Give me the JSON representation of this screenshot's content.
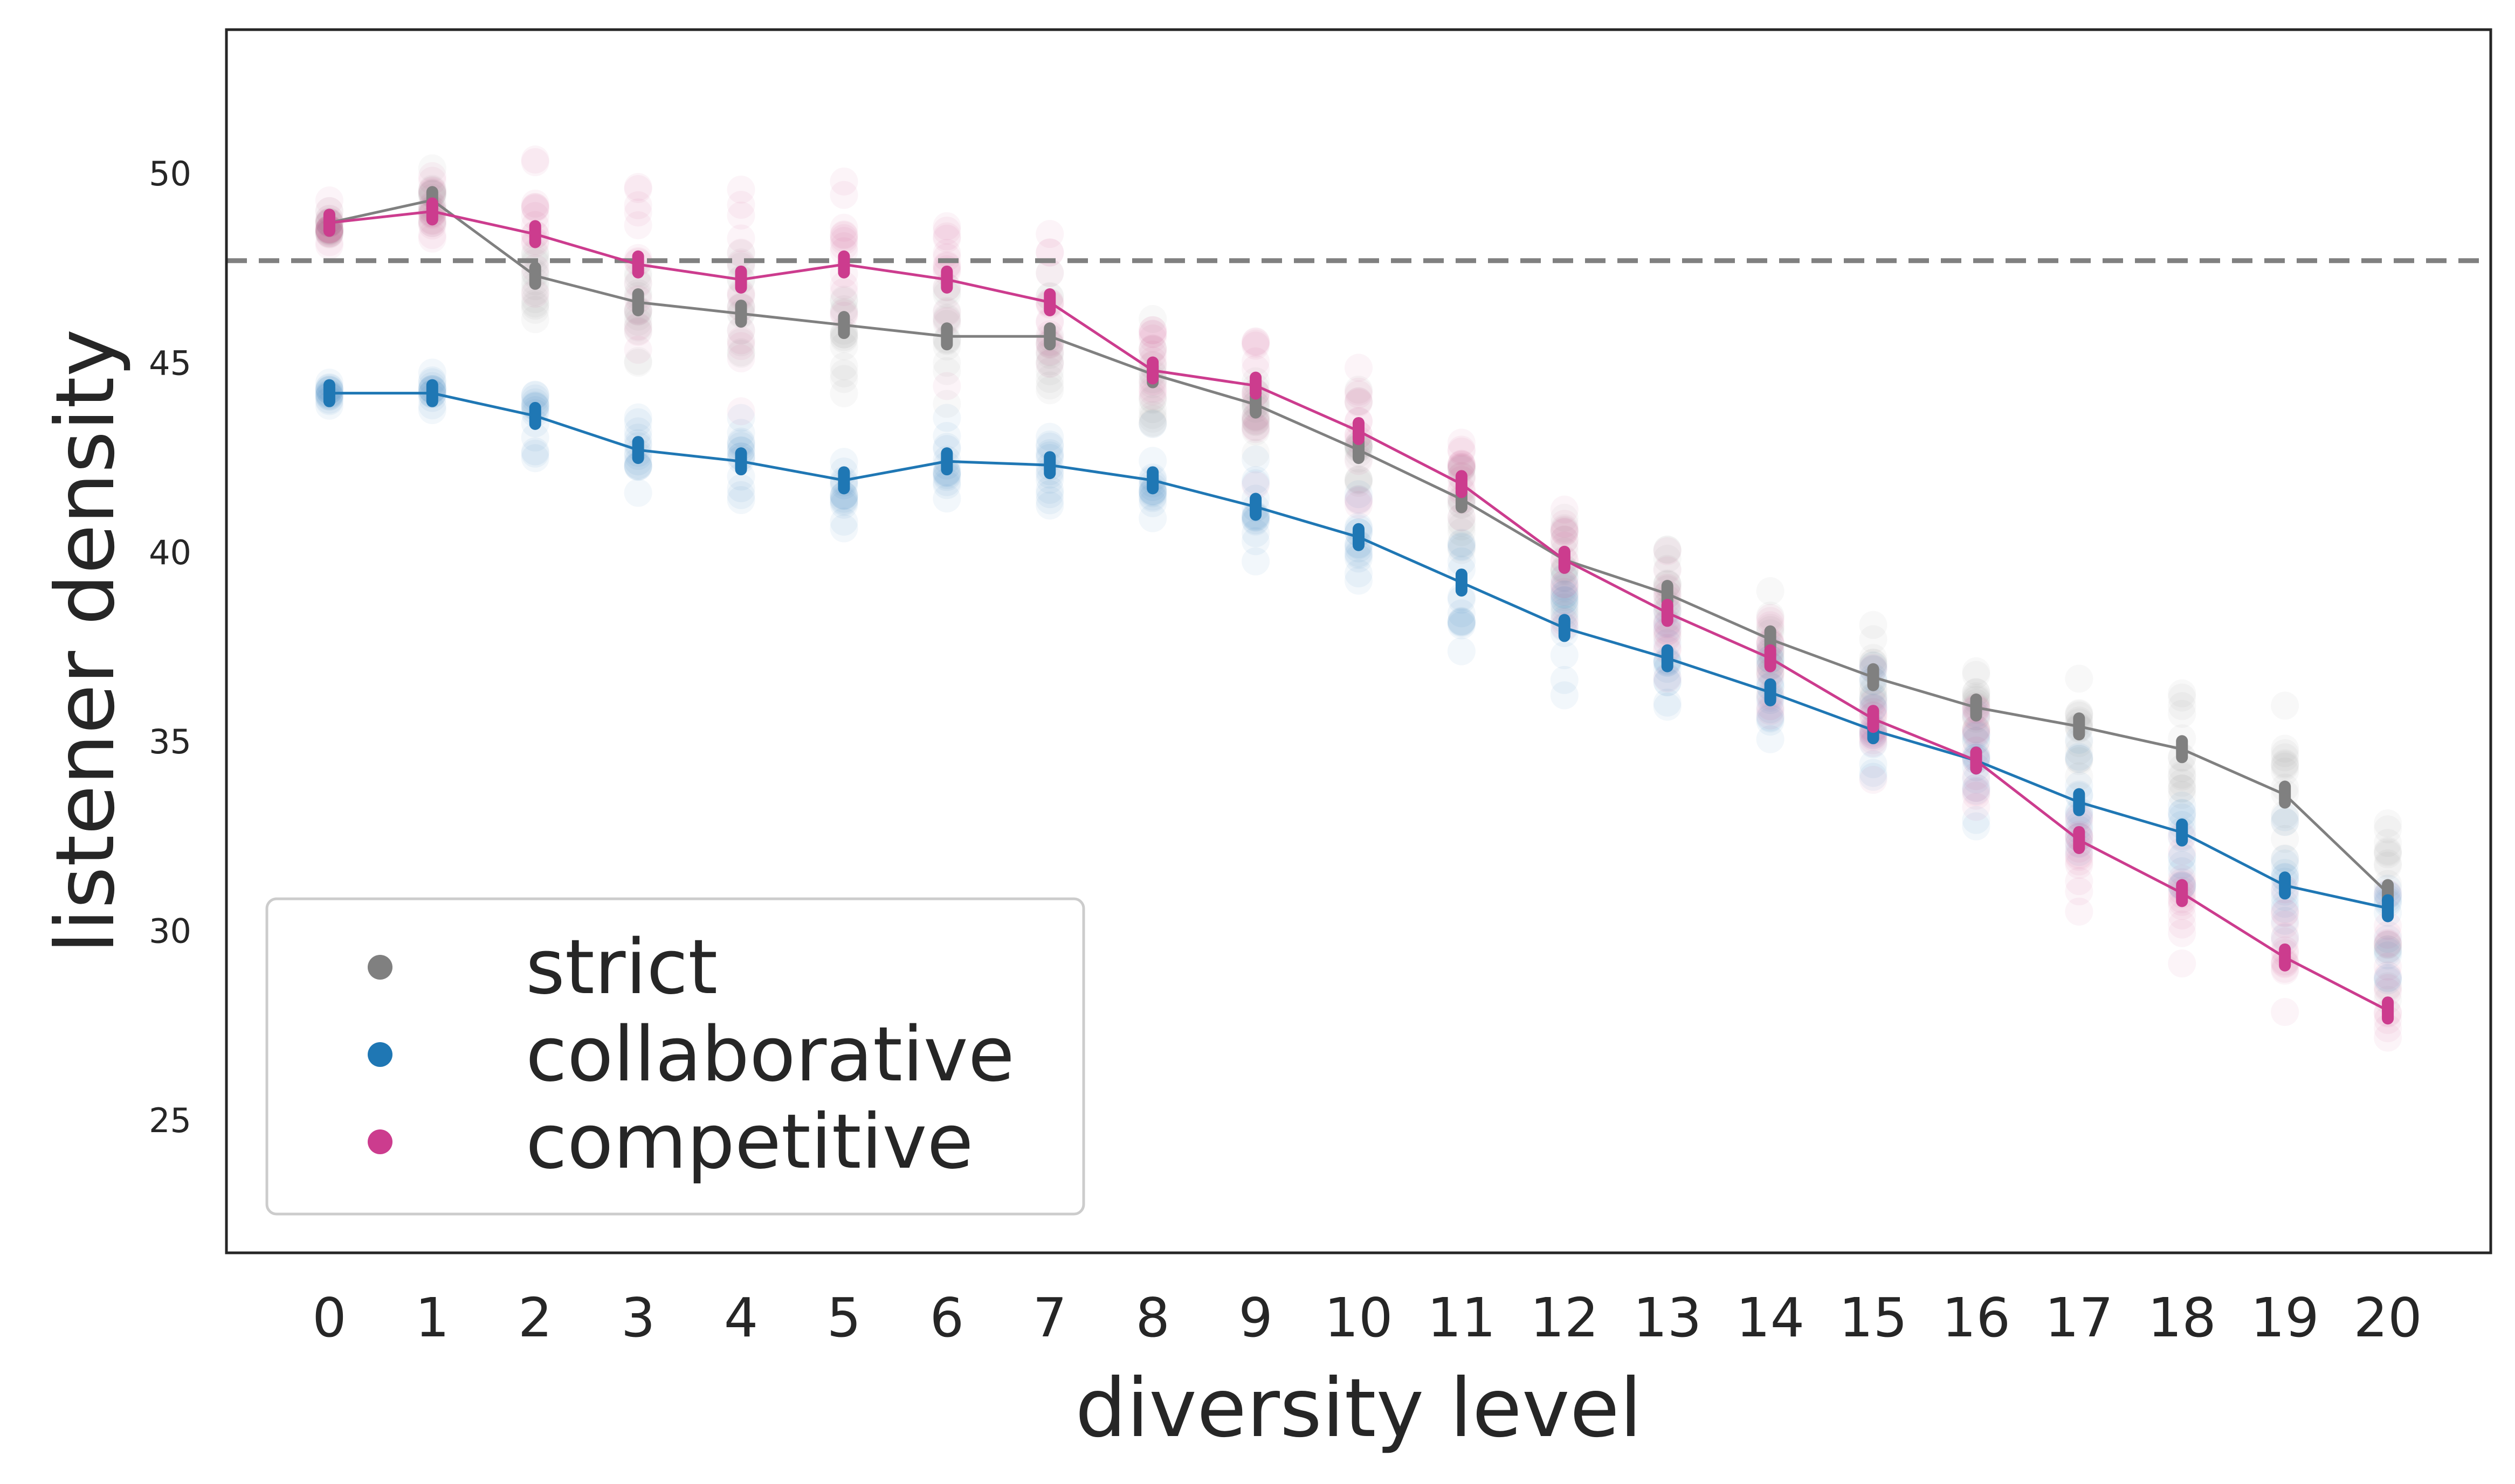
{
  "chart_data": {
    "type": "line",
    "xlabel": "diversity level",
    "ylabel": "listener density",
    "x": [
      0,
      1,
      2,
      3,
      4,
      5,
      6,
      7,
      8,
      9,
      10,
      11,
      12,
      13,
      14,
      15,
      16,
      17,
      18,
      19,
      20
    ],
    "x_tick_labels": [
      "0",
      "1",
      "2",
      "3",
      "4",
      "5",
      "6",
      "7",
      "8",
      "9",
      "10",
      "11",
      "12",
      "13",
      "14",
      "15",
      "16",
      "17",
      "18",
      "19",
      "20"
    ],
    "y_ticks": [
      25,
      30,
      35,
      40,
      45,
      50
    ],
    "y_tick_labels": [
      "25",
      "30",
      "35",
      "40",
      "45",
      "50"
    ],
    "xlim": [
      -1,
      21
    ],
    "ylim": [
      21.5,
      53.8
    ],
    "grid": false,
    "legend_position": "lower-left",
    "reference_line": {
      "y": 47.7,
      "style": "dashed",
      "color": "#808080"
    },
    "series": [
      {
        "name": "strict",
        "color": "#808080",
        "values": [
          48.7,
          49.3,
          47.3,
          46.6,
          46.3,
          46.0,
          45.7,
          45.7,
          44.7,
          43.9,
          42.7,
          41.4,
          39.8,
          38.9,
          37.7,
          36.7,
          35.9,
          35.4,
          34.8,
          33.6,
          31.0
        ],
        "spread": [
          1.0,
          1.0,
          2.0,
          2.0,
          2.5,
          2.5,
          2.5,
          2.5,
          2.0,
          2.5,
          2.0,
          2.0,
          2.0,
          2.0,
          2.0,
          2.0,
          2.0,
          2.0,
          2.5,
          3.0,
          3.5
        ]
      },
      {
        "name": "collaborative",
        "color": "#1f77b4",
        "values": [
          44.2,
          44.2,
          43.6,
          42.7,
          42.4,
          41.9,
          42.4,
          42.3,
          41.9,
          41.2,
          40.4,
          39.2,
          38.0,
          37.2,
          36.3,
          35.3,
          34.5,
          33.4,
          32.6,
          31.2,
          30.6
        ],
        "spread": [
          0.5,
          0.8,
          1.5,
          1.5,
          1.5,
          1.8,
          1.5,
          1.5,
          2.0,
          2.0,
          2.0,
          2.5,
          2.5,
          2.5,
          2.0,
          2.5,
          2.5,
          2.5,
          2.5,
          3.0,
          3.5
        ]
      },
      {
        "name": "competitive",
        "color": "#cc3c8e",
        "values": [
          48.7,
          49.0,
          48.4,
          47.6,
          47.2,
          47.6,
          47.2,
          46.6,
          44.8,
          44.4,
          43.2,
          41.8,
          39.8,
          38.4,
          37.2,
          35.6,
          34.5,
          32.4,
          31.0,
          29.3,
          27.9
        ],
        "spread": [
          1.0,
          1.5,
          3.5,
          3.5,
          4.0,
          3.5,
          4.5,
          4.0,
          3.0,
          3.0,
          3.0,
          2.5,
          3.0,
          2.5,
          2.5,
          2.0,
          2.5,
          2.5,
          2.5,
          3.0,
          3.5
        ]
      }
    ]
  }
}
